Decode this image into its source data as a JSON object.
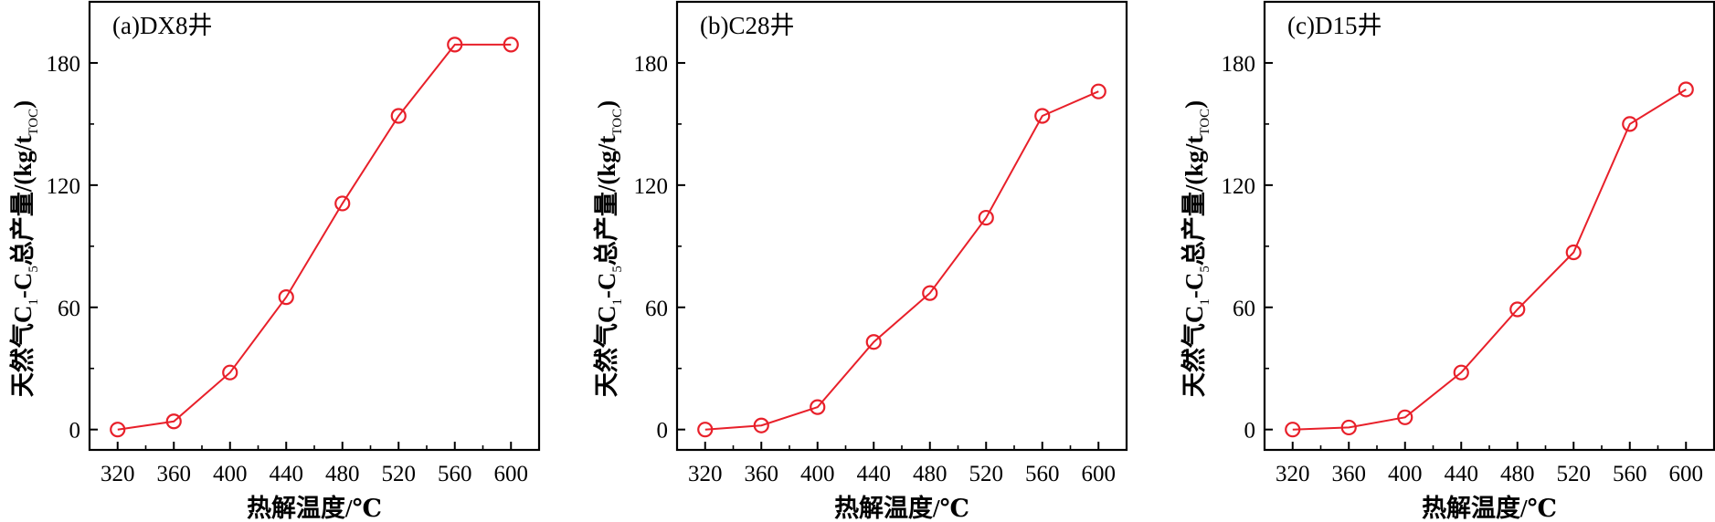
{
  "chart_data": [
    {
      "type": "line",
      "panel_label": "(a)DX8井",
      "xlabel": "热解温度/℃",
      "ylabel": {
        "prefix": "天然气C",
        "sub1": "1",
        "mid": "-C",
        "sub2": "5",
        "suffix": "总产量/(kg/t",
        "sub3": "TOC",
        "end": ")"
      },
      "xticks": [
        320,
        360,
        400,
        440,
        480,
        520,
        560,
        600
      ],
      "yticks": [
        0,
        60,
        120,
        180
      ],
      "xlim": [
        300,
        620
      ],
      "ylim": [
        -10,
        210
      ],
      "x": [
        320,
        360,
        400,
        440,
        480,
        520,
        560,
        600
      ],
      "y": [
        0,
        4,
        28,
        65,
        111,
        154,
        189,
        189
      ],
      "color": "#e8202a",
      "marker": "open-circle",
      "grid": false,
      "legend": "none"
    },
    {
      "type": "line",
      "panel_label": "(b)C28井",
      "xlabel": "热解温度/℃",
      "ylabel": {
        "prefix": "天然气C",
        "sub1": "1",
        "mid": "-C",
        "sub2": "5",
        "suffix": "总产量/(kg/t",
        "sub3": "TOC",
        "end": ")"
      },
      "xticks": [
        320,
        360,
        400,
        440,
        480,
        520,
        560,
        600
      ],
      "yticks": [
        0,
        60,
        120,
        180
      ],
      "xlim": [
        300,
        620
      ],
      "ylim": [
        -10,
        210
      ],
      "x": [
        320,
        360,
        400,
        440,
        480,
        520,
        560,
        600
      ],
      "y": [
        0,
        2,
        11,
        43,
        67,
        104,
        154,
        166
      ],
      "color": "#e8202a",
      "marker": "open-circle",
      "grid": false,
      "legend": "none"
    },
    {
      "type": "line",
      "panel_label": "(c)D15井",
      "xlabel": "热解温度/℃",
      "ylabel": {
        "prefix": "天然气C",
        "sub1": "1",
        "mid": "-C",
        "sub2": "5",
        "suffix": "总产量/(kg/t",
        "sub3": "TOC",
        "end": ")"
      },
      "xticks": [
        320,
        360,
        400,
        440,
        480,
        520,
        560,
        600
      ],
      "yticks": [
        0,
        60,
        120,
        180
      ],
      "xlim": [
        300,
        620
      ],
      "ylim": [
        -10,
        210
      ],
      "x": [
        320,
        360,
        400,
        440,
        480,
        520,
        560,
        600
      ],
      "y": [
        0,
        1,
        6,
        28,
        59,
        87,
        150,
        167
      ],
      "color": "#e8202a",
      "marker": "open-circle",
      "grid": false,
      "legend": "none"
    }
  ]
}
